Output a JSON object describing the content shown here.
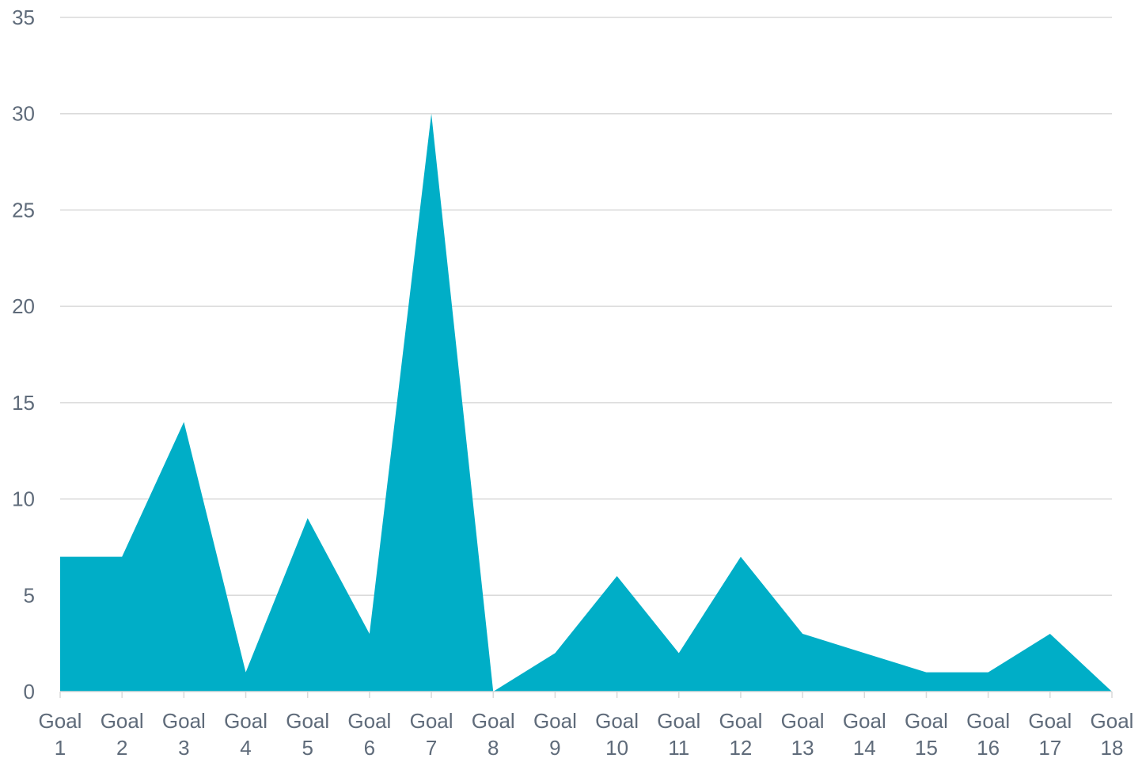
{
  "chart_data": {
    "type": "area",
    "title": "",
    "xlabel": "",
    "ylabel": "",
    "categories": [
      [
        "Goal",
        "1"
      ],
      [
        "Goal",
        "2"
      ],
      [
        "Goal",
        "3"
      ],
      [
        "Goal",
        "4"
      ],
      [
        "Goal",
        "5"
      ],
      [
        "Goal",
        "6"
      ],
      [
        "Goal",
        "7"
      ],
      [
        "Goal",
        "8"
      ],
      [
        "Goal",
        "9"
      ],
      [
        "Goal",
        "10"
      ],
      [
        "Goal",
        "11"
      ],
      [
        "Goal",
        "12"
      ],
      [
        "Goal",
        "13"
      ],
      [
        "Goal",
        "14"
      ],
      [
        "Goal",
        "15"
      ],
      [
        "Goal",
        "16"
      ],
      [
        "Goal",
        "17"
      ],
      [
        "Goal",
        "18"
      ]
    ],
    "values": [
      7,
      7,
      14,
      1,
      9,
      3,
      30,
      0,
      2,
      6,
      2,
      7,
      3,
      2,
      1,
      1,
      3,
      0
    ],
    "ylim": [
      0,
      35
    ],
    "yticks": [
      0,
      5,
      10,
      15,
      20,
      25,
      30,
      35
    ],
    "grid": true,
    "legend": "none",
    "colors": {
      "area": "#00aec7",
      "grid": "#d9d9d9",
      "text": "#5f6b7a"
    }
  }
}
